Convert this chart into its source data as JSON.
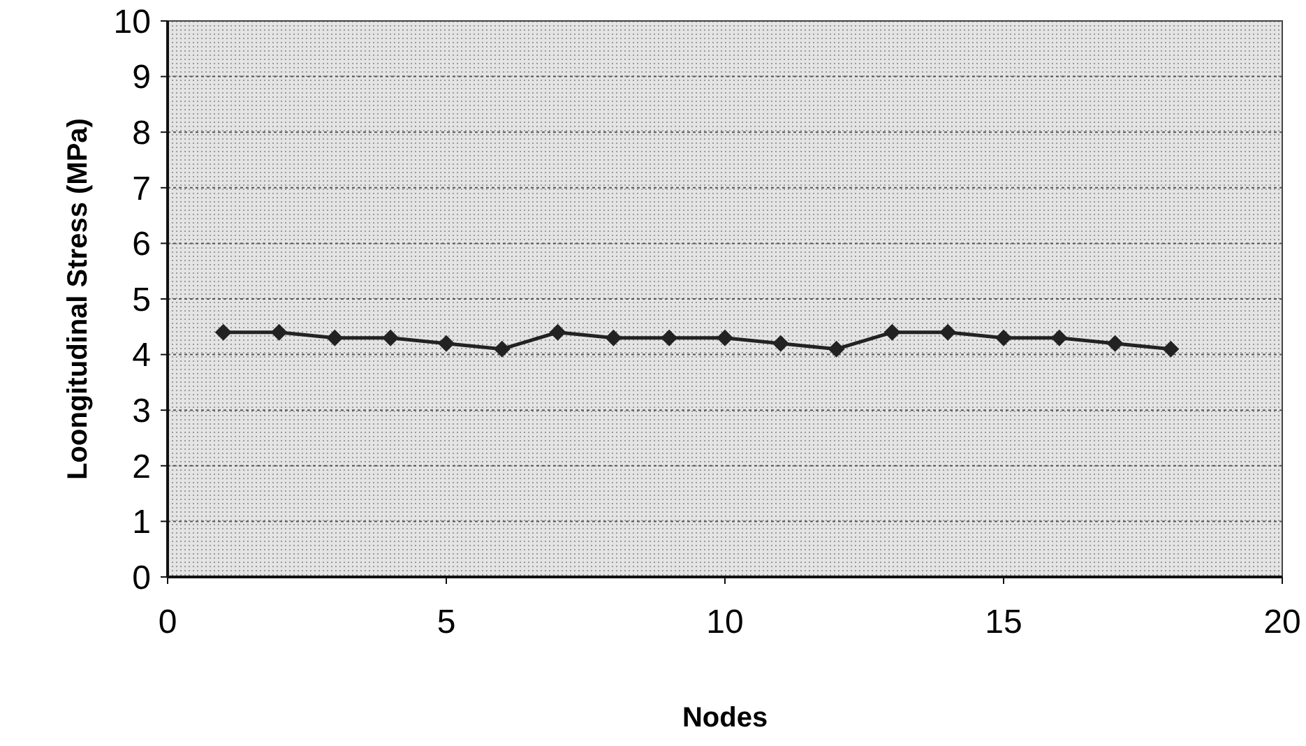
{
  "chart_data": {
    "type": "line",
    "xlabel": "Nodes",
    "ylabel": "Loongitudinal Stress (MPa)",
    "x": [
      1,
      2,
      3,
      4,
      5,
      6,
      7,
      8,
      9,
      10,
      11,
      12,
      13,
      14,
      15,
      16,
      17,
      18
    ],
    "series": [
      {
        "color": "#222222",
        "values": [
          4.4,
          4.4,
          4.3,
          4.3,
          4.2,
          4.1,
          4.4,
          4.3,
          4.3,
          4.3,
          4.2,
          4.1,
          4.4,
          4.4,
          4.3,
          4.3,
          4.2,
          4.1
        ]
      }
    ],
    "xlim": [
      0,
      20
    ],
    "xticks": [
      0,
      5,
      10,
      15,
      20
    ],
    "ylim": [
      0,
      10
    ],
    "yticks": [
      0,
      1,
      2,
      3,
      4,
      5,
      6,
      7,
      8,
      9,
      10
    ],
    "grid": "y",
    "marker": "diamond",
    "line_style": "solid"
  }
}
